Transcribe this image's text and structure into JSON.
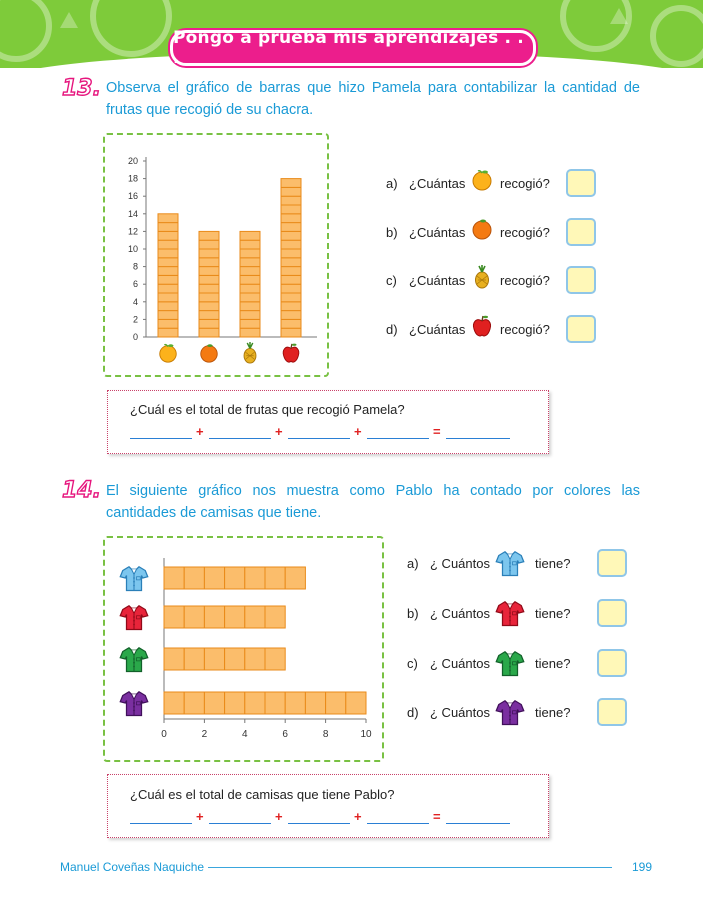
{
  "header": {
    "banner": "Pongo a prueba mis aprendizajes . . ."
  },
  "q13": {
    "number": "13.",
    "text": "Observa el gráfico de barras que hizo Pamela para contabilizar la cantidad de frutas que recogió de su chacra.",
    "questions": [
      {
        "letter": "a)",
        "before": "¿Cuántas",
        "after": "recogió?",
        "icon": "peach-icon"
      },
      {
        "letter": "b)",
        "before": "¿Cuántas",
        "after": "recogió?",
        "icon": "orange-icon"
      },
      {
        "letter": "c)",
        "before": "¿Cuántas",
        "after": "recogió?",
        "icon": "pineapple-icon"
      },
      {
        "letter": "d)",
        "before": "¿Cuántas",
        "after": "recogió?",
        "icon": "apple-icon"
      }
    ],
    "total_question": "¿Cuál es el total de frutas que recogió Pamela?"
  },
  "q14": {
    "number": "14.",
    "text": "El siguiente gráfico nos muestra como Pablo ha contado por colores las cantidades de camisas que tiene.",
    "questions": [
      {
        "letter": "a)",
        "before": "¿ Cuántos",
        "after": "tiene?",
        "icon": "blue-shirt-icon"
      },
      {
        "letter": "b)",
        "before": "¿ Cuántos",
        "after": "tiene?",
        "icon": "red-shirt-icon"
      },
      {
        "letter": "c)",
        "before": "¿ Cuántos",
        "after": "tiene?",
        "icon": "green-shirt-icon"
      },
      {
        "letter": "d)",
        "before": "¿ Cuántos",
        "after": "tiene?",
        "icon": "purple-shirt-icon"
      }
    ],
    "total_question": "¿Cuál es el total de camisas que tiene Pablo?"
  },
  "operators": {
    "plus": "+",
    "equals": "="
  },
  "footer": {
    "author": "Manuel Coveñas Naquiche",
    "page": "199"
  },
  "colors": {
    "bar_fill": "#fbbd6b",
    "bar_stroke": "#e98a19",
    "frame": "#79c143",
    "title_blue": "#1a9ad6",
    "banner": "#ec1e8c"
  },
  "chart_data": [
    {
      "type": "bar",
      "categories": [
        "peach-icon",
        "orange-icon",
        "pineapple-icon",
        "apple-icon"
      ],
      "values": [
        14,
        12,
        12,
        18
      ],
      "ylim": [
        0,
        20
      ],
      "yticks": [
        "0",
        "2",
        "4",
        "6",
        "8",
        "10",
        "12",
        "14",
        "16",
        "18",
        "20"
      ]
    },
    {
      "type": "bar",
      "orientation": "horizontal",
      "categories": [
        "blue-shirt-icon",
        "red-shirt-icon",
        "green-shirt-icon",
        "purple-shirt-icon"
      ],
      "values": [
        7,
        6,
        6,
        10
      ],
      "xlim": [
        0,
        10
      ],
      "xticks": [
        "0",
        "2",
        "4",
        "6",
        "8",
        "10"
      ]
    }
  ]
}
